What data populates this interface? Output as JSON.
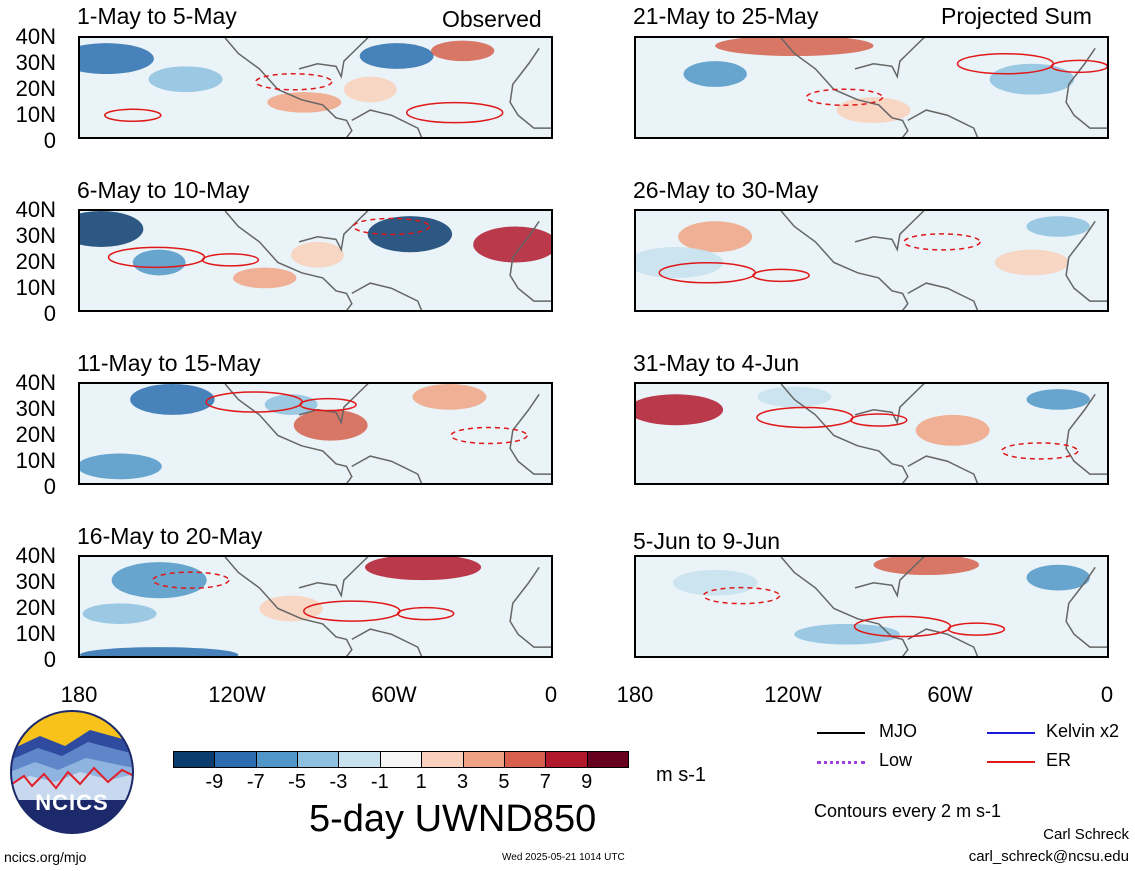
{
  "title": "5-day UWND850",
  "units": "m s-1",
  "contour_note": "Contours every 2 m s-1",
  "left_header": "Observed",
  "right_header": "Projected Sum",
  "panels_left": [
    {
      "label": "1-May to 5-May"
    },
    {
      "label": "6-May to 10-May"
    },
    {
      "label": "11-May to 15-May"
    },
    {
      "label": "16-May to 20-May"
    }
  ],
  "panels_right": [
    {
      "label": "21-May to 25-May"
    },
    {
      "label": "26-May to 30-May"
    },
    {
      "label": "31-May to 4-Jun"
    },
    {
      "label": "5-Jun to 9-Jun"
    }
  ],
  "lat_labels": [
    "40N",
    "30N",
    "20N",
    "10N",
    "0"
  ],
  "lon_labels": [
    "180",
    "120W",
    "60W",
    "0"
  ],
  "colorbar": {
    "labels": [
      "-9",
      "-7",
      "-5",
      "-3",
      "-1",
      "1",
      "3",
      "5",
      "7",
      "9"
    ],
    "colors": [
      "#0b3c6e",
      "#2c6db0",
      "#5096c8",
      "#8dc0de",
      "#c7e1ee",
      "#f6f6f6",
      "#f9d0bb",
      "#f0a384",
      "#d6604d",
      "#b2182b",
      "#67001f"
    ]
  },
  "legend": [
    {
      "label": "MJO",
      "color": "#000000",
      "style": "solid"
    },
    {
      "label": "Kelvin x2",
      "color": "#1a1ad6",
      "style": "solid"
    },
    {
      "label": "Low",
      "color": "#a040e0",
      "style": "dotted"
    },
    {
      "label": "ER",
      "color": "#e01818",
      "style": "solid"
    }
  ],
  "logo_text": "NCICS",
  "footer_left": "ncics.org/mjo",
  "footer_center": "Wed 2025-05-21 1014 UTC",
  "author": "Carl Schreck",
  "email": "carl_schreck@ncsu.edu"
}
